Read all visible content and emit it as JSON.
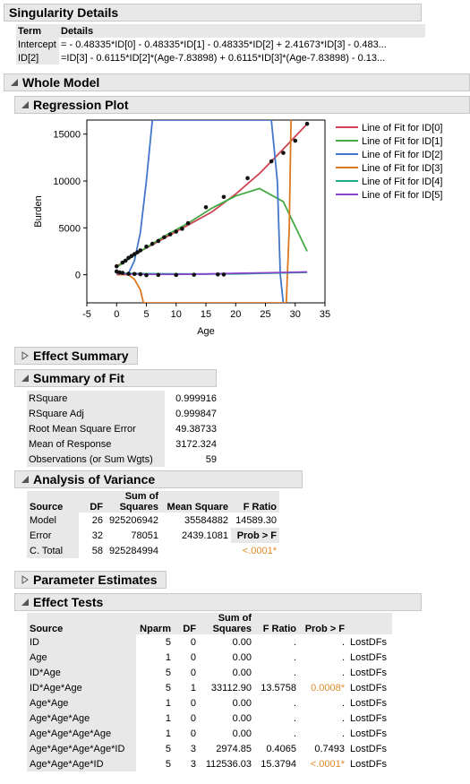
{
  "singularity": {
    "title": "Singularity Details",
    "headers": [
      "Term",
      "Details"
    ],
    "rows": [
      [
        "Intercept",
        "= - 0.48335*ID[0] - 0.48335*ID[1] - 0.48335*ID[2] + 2.41673*ID[3] - 0.483..."
      ],
      [
        "ID[2]",
        "=ID[3] - 0.6115*ID[2]*(Age-7.83898) + 0.6115*ID[3]*(Age-7.83898) - 0.13..."
      ]
    ]
  },
  "whole_model": {
    "title": "Whole Model"
  },
  "regression_plot": {
    "title": "Regression Plot"
  },
  "chart_data": {
    "type": "line",
    "xlabel": "Age",
    "ylabel": "Burden",
    "xlim": [
      -5,
      35
    ],
    "ylim": [
      -3000,
      16500
    ],
    "xticks": [
      "-5",
      "0",
      "5",
      "10",
      "15",
      "20",
      "25",
      "30",
      "35"
    ],
    "yticks": [
      "0",
      "5000",
      "10000",
      "15000"
    ],
    "grid": false,
    "legend": "right",
    "series": [
      {
        "name": "Line of Fit for ID[0]",
        "color": "#cc4455",
        "x": [
          0,
          4,
          8,
          12,
          16,
          20,
          24,
          28,
          32
        ],
        "y": [
          900,
          2500,
          3900,
          5300,
          6700,
          8600,
          10800,
          13400,
          16100
        ]
      },
      {
        "name": "Line of Fit for ID[1]",
        "color": "#44aa44",
        "x": [
          0,
          4,
          8,
          12,
          16,
          20,
          24,
          28,
          32
        ],
        "y": [
          800,
          2500,
          4100,
          5500,
          7100,
          8400,
          9200,
          7800,
          2500
        ]
      },
      {
        "name": "Line of Fit for ID[2]",
        "color": "#4477cc",
        "x": [
          0,
          2,
          3,
          4,
          5,
          6,
          26,
          27,
          27.5,
          28
        ],
        "y": [
          0,
          150,
          1500,
          4500,
          10000,
          16500,
          16500,
          10000,
          0,
          -3000
        ]
      },
      {
        "name": "Line of Fit for ID[3]",
        "color": "#dd7722",
        "x": [
          0,
          2,
          3,
          4,
          4.5,
          28.5,
          29,
          29.3
        ],
        "y": [
          0,
          0,
          -500,
          -1600,
          -3000,
          -3000,
          5000,
          16500
        ]
      },
      {
        "name": "Line of Fit for ID[4]",
        "color": "#22aa88",
        "x": [
          0,
          5,
          10,
          15,
          20,
          25,
          32
        ],
        "y": [
          150,
          120,
          100,
          80,
          90,
          150,
          250
        ]
      },
      {
        "name": "Line of Fit for ID[5]",
        "color": "#8844cc",
        "x": [
          0,
          5,
          10,
          15,
          20,
          25,
          32
        ],
        "y": [
          100,
          50,
          40,
          80,
          150,
          200,
          300
        ]
      }
    ],
    "points": {
      "upper": [
        [
          0,
          900
        ],
        [
          1,
          1300
        ],
        [
          1.5,
          1500
        ],
        [
          2,
          1800
        ],
        [
          2.5,
          2000
        ],
        [
          3,
          2200
        ],
        [
          3.5,
          2400
        ],
        [
          4,
          2600
        ],
        [
          5,
          3000
        ],
        [
          6,
          3300
        ],
        [
          7,
          3600
        ],
        [
          8,
          4000
        ],
        [
          9,
          4300
        ],
        [
          10,
          4600
        ],
        [
          11,
          4900
        ],
        [
          12,
          5500
        ],
        [
          15,
          7200
        ],
        [
          18,
          8300
        ],
        [
          22,
          10300
        ],
        [
          26,
          12100
        ],
        [
          28,
          13000
        ],
        [
          30,
          14300
        ],
        [
          32,
          16100
        ]
      ],
      "lower": [
        [
          0,
          350
        ],
        [
          0.5,
          250
        ],
        [
          1,
          200
        ],
        [
          2,
          100
        ],
        [
          3,
          80
        ],
        [
          4,
          50
        ],
        [
          5,
          -50
        ],
        [
          7,
          -20
        ],
        [
          10,
          -20
        ],
        [
          13,
          0
        ],
        [
          17,
          30
        ],
        [
          18,
          20
        ]
      ]
    }
  },
  "effect_summary": {
    "title": "Effect Summary"
  },
  "summary_of_fit": {
    "title": "Summary of Fit",
    "rows": [
      [
        "RSquare",
        "0.999916"
      ],
      [
        "RSquare Adj",
        "0.999847"
      ],
      [
        "Root Mean Square Error",
        "49.38733"
      ],
      [
        "Mean of Response",
        "3172.324"
      ],
      [
        "Observations (or Sum Wgts)",
        "59"
      ]
    ]
  },
  "anova": {
    "title": "Analysis of Variance",
    "h_source": "Source",
    "h_df": "DF",
    "h_ss1": "Sum of",
    "h_ss2": "Squares",
    "h_ms": "Mean Square",
    "h_f": "F Ratio",
    "rows": [
      [
        "Model",
        "26",
        "925206942",
        "35584882",
        "14589.30"
      ],
      [
        "Error",
        "32",
        "78051",
        "2439.1081",
        "Prob > F"
      ],
      [
        "C. Total",
        "58",
        "925284994",
        "",
        "<.0001*"
      ]
    ]
  },
  "parameter_estimates": {
    "title": "Parameter Estimates"
  },
  "effect_tests": {
    "title": "Effect Tests",
    "h_source": "Source",
    "h_nparm": "Nparm",
    "h_df": "DF",
    "h_ss1": "Sum of",
    "h_ss2": "Squares",
    "h_f": "F Ratio",
    "h_p": "Prob > F",
    "rows": [
      [
        "ID",
        "5",
        "0",
        "0.00",
        ".",
        ".",
        "LostDFs"
      ],
      [
        "Age",
        "1",
        "0",
        "0.00",
        ".",
        ".",
        "LostDFs"
      ],
      [
        "ID*Age",
        "5",
        "0",
        "0.00",
        ".",
        ".",
        "LostDFs"
      ],
      [
        "ID*Age*Age",
        "5",
        "1",
        "33112.90",
        "13.5758",
        "0.0008*",
        "LostDFs"
      ],
      [
        "Age*Age",
        "1",
        "0",
        "0.00",
        ".",
        ".",
        "LostDFs"
      ],
      [
        "Age*Age*Age",
        "1",
        "0",
        "0.00",
        ".",
        ".",
        "LostDFs"
      ],
      [
        "Age*Age*Age*Age",
        "1",
        "0",
        "0.00",
        ".",
        ".",
        "LostDFs"
      ],
      [
        "Age*Age*Age*Age*ID",
        "5",
        "3",
        "2974.85",
        "0.4065",
        "0.7493",
        "LostDFs"
      ],
      [
        "Age*Age*Age*ID",
        "5",
        "3",
        "112536.03",
        "15.3794",
        "<.0001*",
        "LostDFs"
      ]
    ]
  }
}
